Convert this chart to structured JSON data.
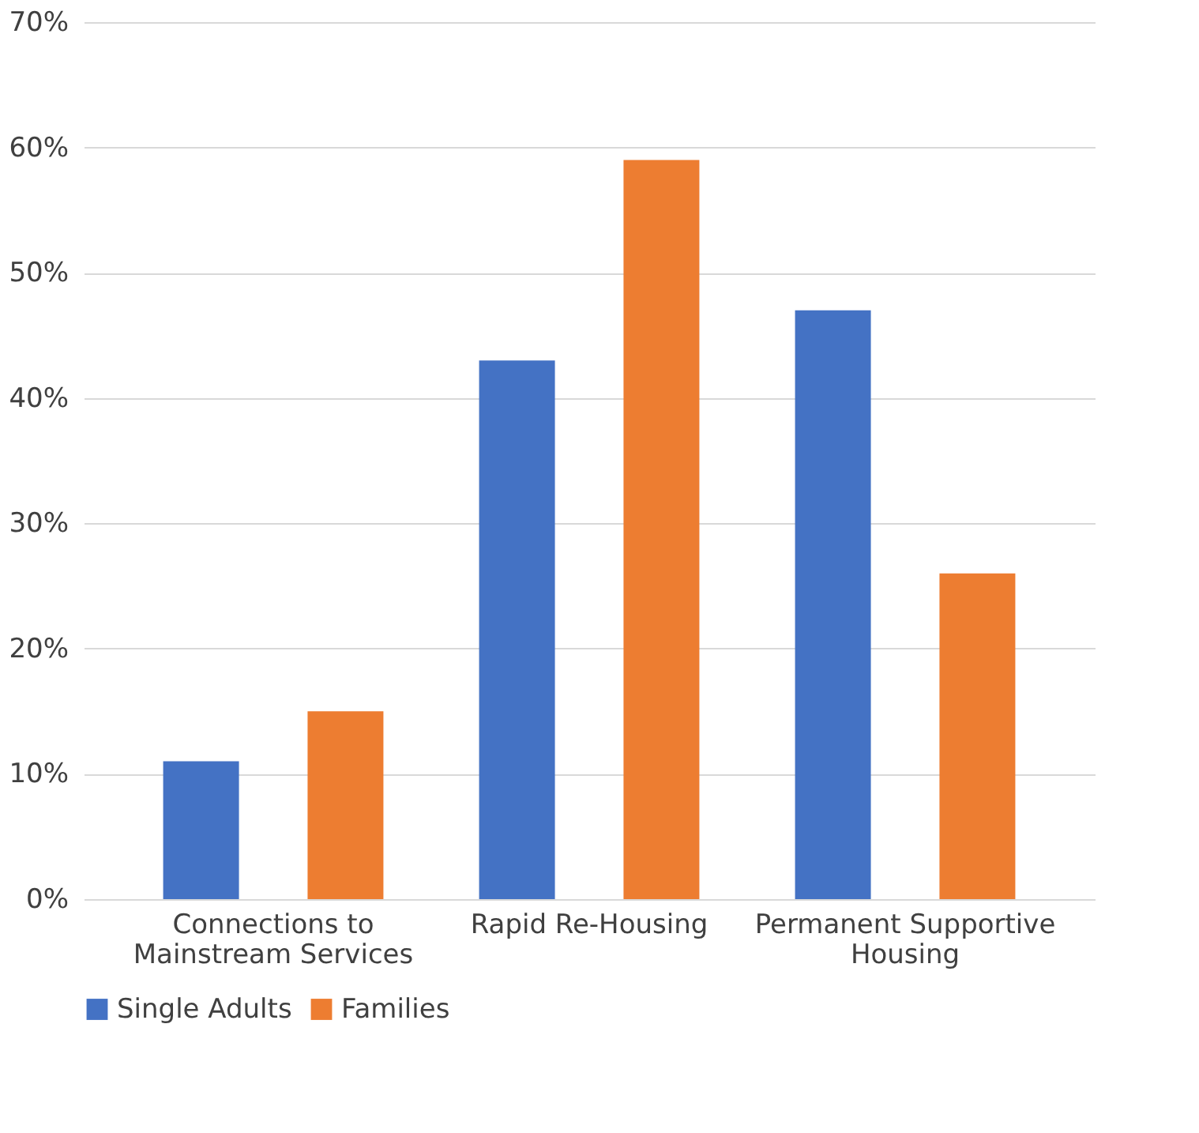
{
  "chart_data": {
    "type": "bar",
    "categories": [
      "Connections to Mainstream Services",
      "Rapid Re-Housing",
      "Permanent Supportive Housing"
    ],
    "series": [
      {
        "name": "Single Adults",
        "color": "#4472c4",
        "values": [
          11,
          43,
          47
        ]
      },
      {
        "name": "Families",
        "color": "#ed7d31",
        "values": [
          15,
          59,
          26
        ]
      }
    ],
    "ylim": [
      0,
      70
    ],
    "yticks": [
      {
        "value": 0,
        "label": "0%"
      },
      {
        "value": 10,
        "label": "10%"
      },
      {
        "value": 20,
        "label": "20%"
      },
      {
        "value": 30,
        "label": "30%"
      },
      {
        "value": 40,
        "label": "40%"
      },
      {
        "value": 50,
        "label": "50%"
      },
      {
        "value": 60,
        "label": "60%"
      },
      {
        "value": 70,
        "label": "70%"
      }
    ],
    "grid": "y",
    "legend": "bottom"
  }
}
